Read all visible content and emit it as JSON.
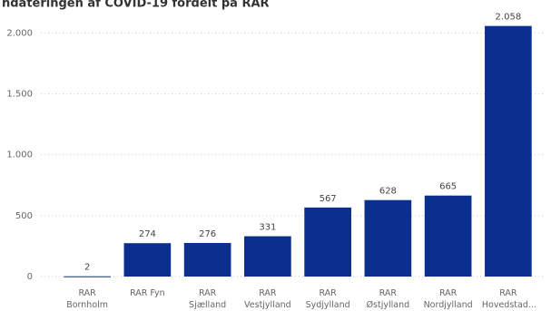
{
  "chart_data": {
    "type": "bar",
    "title": "ndateringen af COVID-19 fordelt på RAR",
    "categories": [
      "RAR Bornholm",
      "RAR Fyn",
      "RAR Sjælland",
      "RAR Vestjylland",
      "RAR Sydjylland",
      "RAR Østjylland",
      "RAR Nordjylland",
      "RAR Hovedstad..."
    ],
    "values": [
      2,
      274,
      276,
      331,
      567,
      628,
      665,
      2058
    ],
    "value_labels": [
      "2",
      "274",
      "276",
      "331",
      "567",
      "628",
      "665",
      "2.058"
    ],
    "color": "#0b2f8f",
    "ylim": [
      0,
      2100
    ],
    "yticks": [
      0,
      500,
      {
        "value": 1000,
        "label": "1.000"
      },
      {
        "value": 1500,
        "label": "1.500"
      },
      {
        "value": 2000,
        "label": "2.000"
      }
    ],
    "grid": true
  }
}
